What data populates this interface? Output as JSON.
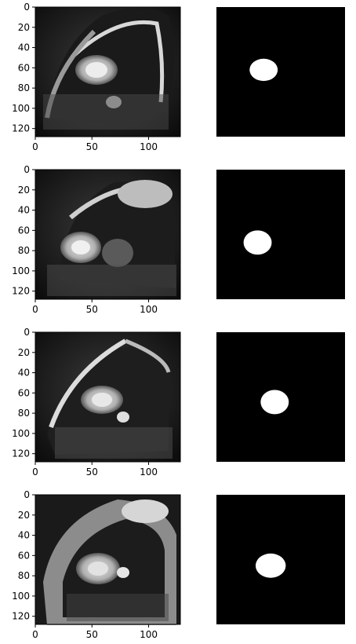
{
  "figure": {
    "rows": [
      {
        "scan_id": "mri-slice-1",
        "mask_id": "mask-1"
      },
      {
        "scan_id": "mri-slice-2",
        "mask_id": "mask-2"
      },
      {
        "scan_id": "mri-slice-3",
        "mask_id": "mask-3"
      },
      {
        "scan_id": "mri-slice-4",
        "mask_id": "mask-4"
      }
    ],
    "y_ticks": [
      "0",
      "20",
      "40",
      "60",
      "80",
      "100",
      "120"
    ],
    "x_ticks": [
      "0",
      "50",
      "100"
    ],
    "mask_blobs": [
      {
        "cx": 47,
        "cy": 62,
        "rx": 14,
        "ry": 11
      },
      {
        "cx": 41,
        "cy": 72,
        "rx": 14,
        "ry": 12
      },
      {
        "cx": 58,
        "cy": 69,
        "rx": 14,
        "ry": 12
      },
      {
        "cx": 54,
        "cy": 70,
        "rx": 15,
        "ry": 12
      }
    ],
    "colors": {
      "mask_bg": "#000000",
      "mask_fg": "#ffffff",
      "axis": "#000000"
    }
  }
}
